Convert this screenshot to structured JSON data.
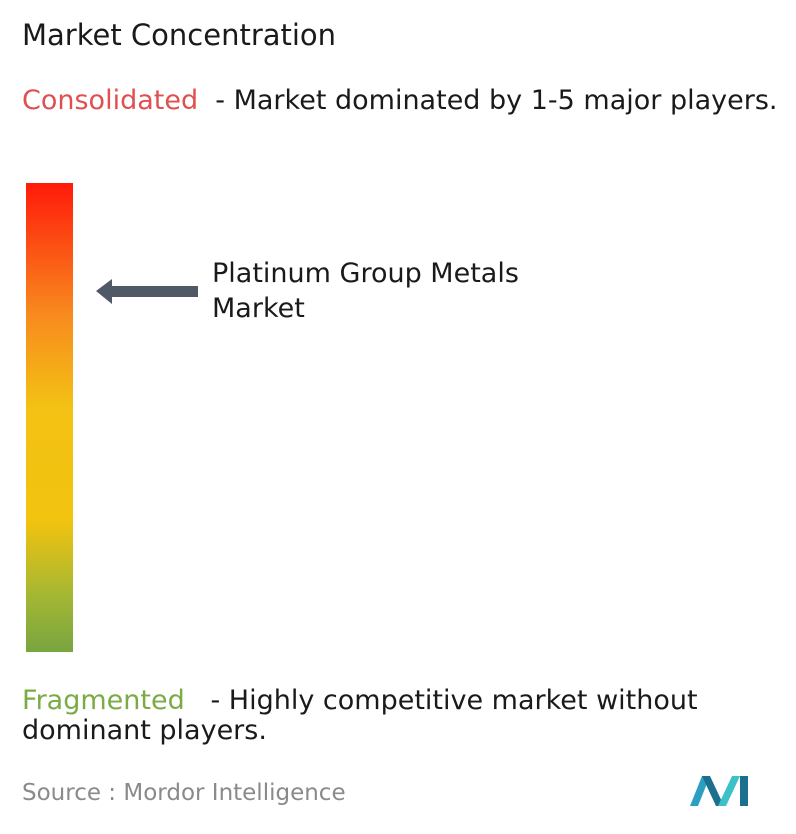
{
  "title": "Market Concentration",
  "consolidated": {
    "label": "Consolidated",
    "description": "- Market dominated by 1-5 major players."
  },
  "marker": {
    "label": "Platinum Group Metals Market"
  },
  "fragmented": {
    "label": "Fragmented",
    "description": "- Highly competitive market without dominant players."
  },
  "source": {
    "label": "Source :",
    "name": "Mordor Intelligence"
  }
}
